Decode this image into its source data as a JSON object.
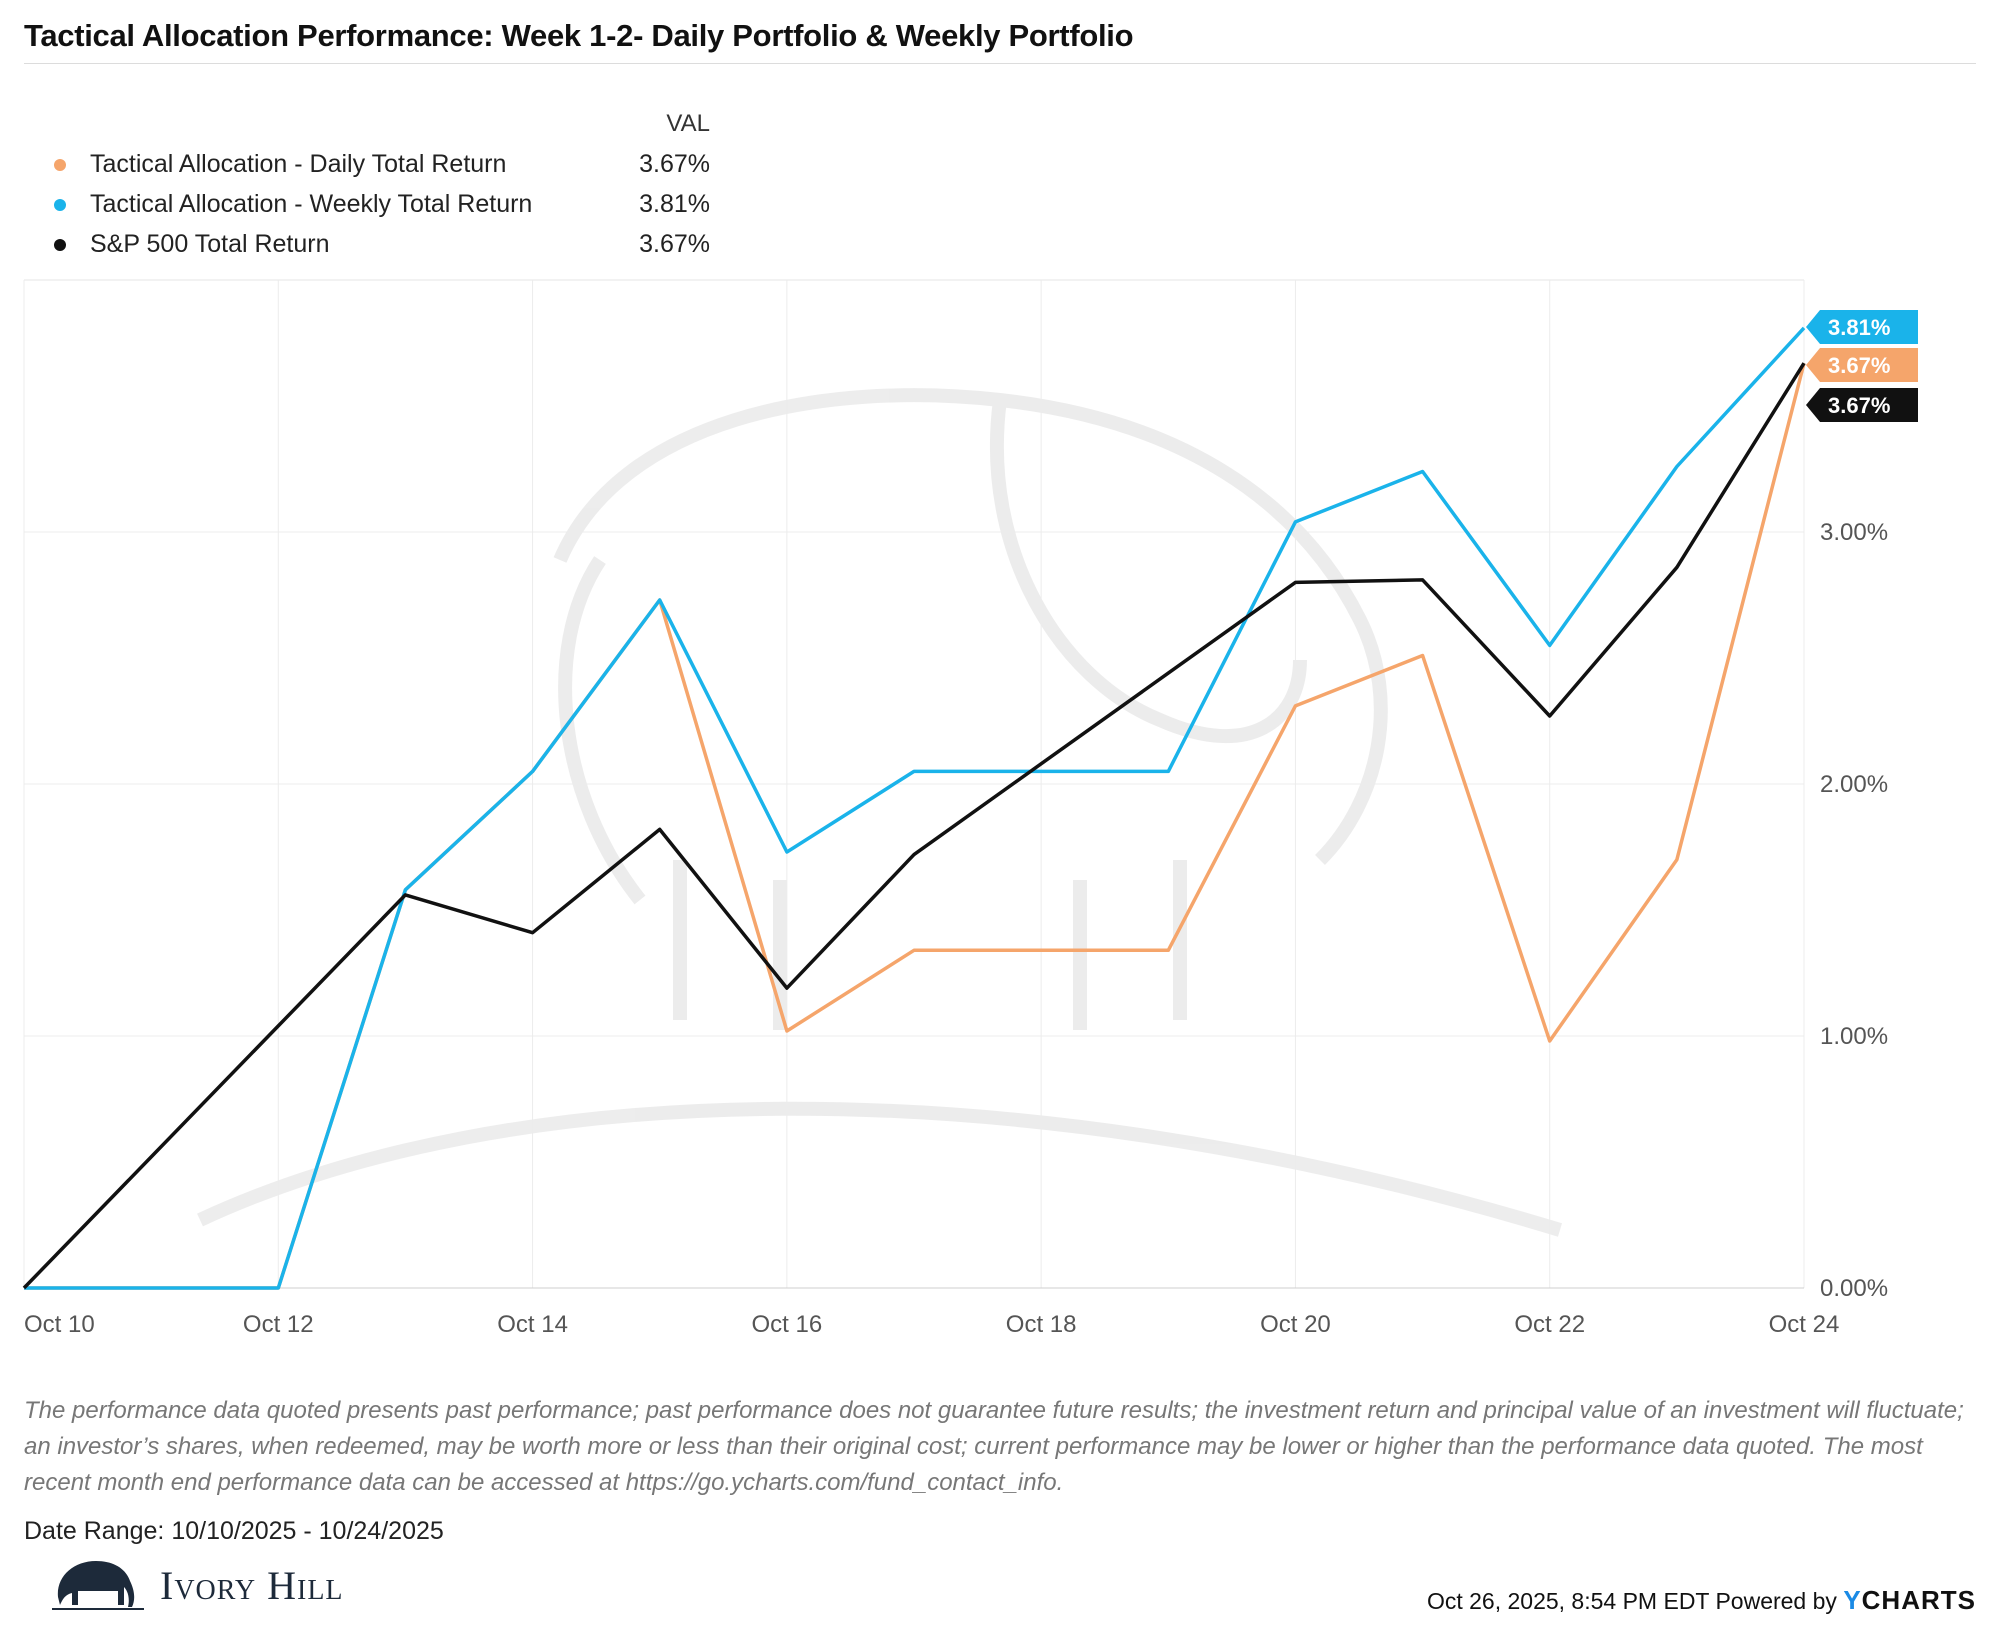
{
  "title": "Tactical Allocation Performance: Week 1-2- Daily Portfolio & Weekly Portfolio",
  "legend": {
    "header": "VAL",
    "items": [
      {
        "label": "Tactical Allocation - Daily Total Return",
        "value": "3.67%",
        "color": "#f5a56b"
      },
      {
        "label": "Tactical Allocation - Weekly Total Return",
        "value": "3.81%",
        "color": "#1ab3ea"
      },
      {
        "label": "S&P 500 Total Return",
        "value": "3.67%",
        "color": "#111111"
      }
    ]
  },
  "chart_data": {
    "type": "line",
    "x": [
      "2025-10-10",
      "2025-10-11",
      "2025-10-12",
      "2025-10-13",
      "2025-10-14",
      "2025-10-15",
      "2025-10-16",
      "2025-10-17",
      "2025-10-18",
      "2025-10-19",
      "2025-10-20",
      "2025-10-21",
      "2025-10-22",
      "2025-10-23",
      "2025-10-24"
    ],
    "x_ticks": [
      "Oct 10",
      "Oct 12",
      "Oct 14",
      "Oct 16",
      "Oct 18",
      "Oct 20",
      "Oct 22",
      "Oct 24"
    ],
    "y_ticks": [
      "0.00%",
      "1.00%",
      "2.00%",
      "3.00%"
    ],
    "ylim": [
      0,
      4.0
    ],
    "y_unit": "%",
    "grid": true,
    "series": [
      {
        "name": "Tactical Allocation - Daily Total Return",
        "color": "#f5a56b",
        "values": [
          0.0,
          0.0,
          0.0,
          1.58,
          2.05,
          2.73,
          1.02,
          1.34,
          1.34,
          1.34,
          2.31,
          2.51,
          0.98,
          1.7,
          3.67
        ],
        "end_label": "3.67%"
      },
      {
        "name": "Tactical Allocation - Weekly Total Return",
        "color": "#1ab3ea",
        "values": [
          0.0,
          0.0,
          0.0,
          1.58,
          2.05,
          2.73,
          1.73,
          2.05,
          2.05,
          2.05,
          3.04,
          3.24,
          2.55,
          3.26,
          3.81
        ],
        "end_label": "3.81%"
      },
      {
        "name": "S&P 500 Total Return",
        "color": "#111111",
        "values": [
          0.0,
          0.52,
          1.04,
          1.56,
          1.41,
          1.82,
          1.19,
          1.72,
          2.08,
          2.44,
          2.8,
          2.81,
          2.27,
          2.86,
          3.67
        ],
        "end_label": "3.67%"
      }
    ]
  },
  "disclaimer": "The performance data quoted presents past performance; past performance does not guarantee future results; the investment return and principal value of an investment will fluctuate; an investor’s shares, when redeemed, may be worth more or less than their original cost; current performance may be lower or higher than the performance data quoted. The most recent month end performance data can be accessed at https://go.ycharts.com/fund_contact_info.",
  "date_range": "Date Range: 10/10/2025 - 10/24/2025",
  "brand": "Ivory Hill",
  "footer": {
    "timestamp": "Oct 26, 2025, 8:54 PM EDT Powered by",
    "ycharts_y": "Y",
    "ycharts_rest": "CHARTS"
  }
}
